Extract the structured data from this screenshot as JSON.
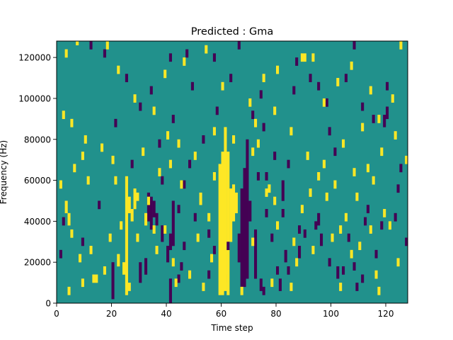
{
  "chart_data": {
    "type": "heatmap",
    "title": "Predicted : Gma",
    "xlabel": "Time step",
    "ylabel": "Frequency (Hz)",
    "xlim": [
      0,
      128
    ],
    "ylim": [
      0,
      128000
    ],
    "x_ticks": [
      0,
      20,
      40,
      60,
      80,
      100,
      120
    ],
    "x_tick_labels": [
      "0",
      "20",
      "40",
      "60",
      "80",
      "100",
      "120"
    ],
    "y_ticks": [
      0,
      20000,
      40000,
      60000,
      80000,
      100000,
      120000
    ],
    "y_tick_labels": [
      "0",
      "20000",
      "40000",
      "60000",
      "80000",
      "100000",
      "120000"
    ],
    "grid": false,
    "colormap": "viridis",
    "background_value": 0,
    "colors": {
      "background": "#21918c",
      "high": "#fde725",
      "low": "#440154"
    },
    "cell_height_hz": 2000,
    "cells_low": [
      [
        20,
        2000,
        20000
      ],
      [
        30,
        10000,
        20000
      ],
      [
        32,
        14000,
        22000
      ],
      [
        33,
        40000,
        54000
      ],
      [
        34,
        36000,
        52000
      ],
      [
        35,
        42000,
        50000
      ],
      [
        36,
        38000,
        44000
      ],
      [
        38,
        30000,
        38000
      ],
      [
        40,
        20000,
        28000
      ],
      [
        41,
        26000,
        34000
      ],
      [
        42,
        28000,
        50000
      ],
      [
        44,
        10000,
        14000
      ],
      [
        45,
        16000,
        20000
      ],
      [
        41,
        0,
        12000
      ],
      [
        46,
        56000,
        60000
      ],
      [
        55,
        12000,
        16000
      ],
      [
        57,
        24000,
        28000
      ],
      [
        61,
        10000,
        14000
      ],
      [
        66,
        20000,
        34000
      ],
      [
        67,
        8000,
        56000
      ],
      [
        68,
        8000,
        66000
      ],
      [
        69,
        12000,
        80000
      ],
      [
        70,
        40000,
        50000
      ],
      [
        72,
        12000,
        36000
      ],
      [
        73,
        60000,
        64000
      ],
      [
        74,
        6000,
        12000
      ],
      [
        75,
        4000,
        8000
      ],
      [
        76,
        42000,
        46000
      ],
      [
        78,
        30000,
        34000
      ],
      [
        80,
        14000,
        18000
      ],
      [
        81,
        6000,
        12000
      ],
      [
        82,
        50000,
        60000
      ],
      [
        83,
        20000,
        26000
      ],
      [
        84,
        14000,
        18000
      ],
      [
        88,
        22000,
        28000
      ],
      [
        90,
        32000,
        36000
      ],
      [
        94,
        36000,
        40000
      ],
      [
        95,
        38000,
        44000
      ],
      [
        96,
        28000,
        34000
      ],
      [
        102,
        12000,
        18000
      ],
      [
        106,
        30000,
        34000
      ],
      [
        108,
        16000,
        20000
      ],
      [
        111,
        10000,
        14000
      ],
      [
        113,
        44000,
        48000
      ],
      [
        118,
        36000,
        40000
      ],
      [
        119,
        86000,
        92000
      ],
      [
        120,
        90000,
        96000
      ],
      [
        124,
        54000,
        58000
      ],
      [
        127,
        28000,
        32000
      ]
    ],
    "cells_high": [
      [
        24,
        14000,
        20000
      ],
      [
        25,
        4000,
        62000
      ],
      [
        26,
        44000,
        52000
      ],
      [
        27,
        40000,
        46000
      ],
      [
        28,
        46000,
        56000
      ],
      [
        29,
        50000,
        54000
      ],
      [
        35,
        34000,
        38000
      ],
      [
        59,
        4000,
        68000
      ],
      [
        60,
        4000,
        74000
      ],
      [
        61,
        6000,
        86000
      ],
      [
        62,
        4000,
        74000
      ],
      [
        63,
        30000,
        56000
      ],
      [
        64,
        40000,
        58000
      ],
      [
        65,
        44000,
        54000
      ],
      [
        22,
        18000,
        24000
      ],
      [
        32,
        38000,
        44000
      ],
      [
        41,
        66000,
        70000
      ],
      [
        52,
        48000,
        54000
      ],
      [
        55,
        40000,
        44000
      ],
      [
        57,
        60000,
        64000
      ],
      [
        71,
        72000,
        76000
      ],
      [
        73,
        76000,
        80000
      ],
      [
        76,
        52000,
        56000
      ],
      [
        77,
        54000,
        58000
      ],
      [
        78,
        8000,
        12000
      ],
      [
        87,
        18000,
        22000
      ],
      [
        89,
        118000,
        122000
      ],
      [
        90,
        118000,
        122000
      ],
      [
        92,
        52000,
        56000
      ],
      [
        95,
        60000,
        64000
      ],
      [
        98,
        50000,
        54000
      ],
      [
        103,
        34000,
        38000
      ],
      [
        107,
        22000,
        26000
      ],
      [
        109,
        50000,
        54000
      ],
      [
        113,
        64000,
        68000
      ],
      [
        115,
        58000,
        62000
      ],
      [
        119,
        42000,
        46000
      ],
      [
        121,
        36000,
        40000
      ],
      [
        13,
        10000,
        14000
      ],
      [
        14,
        10000,
        14000
      ],
      [
        3,
        44000,
        50000
      ],
      [
        4,
        38000,
        44000
      ],
      [
        17,
        14000,
        18000
      ],
      [
        21,
        58000,
        62000
      ],
      [
        29,
        30000,
        34000
      ],
      [
        6,
        64000,
        68000
      ],
      [
        9,
        70000,
        74000
      ],
      [
        37,
        62000,
        66000
      ]
    ],
    "speckles_low": [
      [
        25,
        108000
      ],
      [
        41,
        118000
      ],
      [
        34,
        102000
      ],
      [
        47,
        120000
      ],
      [
        63,
        108000
      ],
      [
        71,
        90000
      ],
      [
        75,
        84000
      ],
      [
        79,
        70000
      ],
      [
        86,
        102000
      ],
      [
        95,
        104000
      ],
      [
        98,
        96000
      ],
      [
        105,
        108000
      ],
      [
        111,
        94000
      ],
      [
        115,
        88000
      ],
      [
        120,
        104000
      ],
      [
        17,
        120000
      ],
      [
        58,
        92000
      ],
      [
        53,
        78000
      ],
      [
        48,
        66000
      ],
      [
        38,
        58000
      ],
      [
        44,
        44000
      ],
      [
        50,
        40000
      ],
      [
        55,
        32000
      ],
      [
        62,
        26000
      ],
      [
        66,
        124000
      ],
      [
        76,
        60000
      ],
      [
        82,
        42000
      ],
      [
        88,
        34000
      ],
      [
        99,
        18000
      ],
      [
        104,
        14000
      ],
      [
        109,
        6000
      ],
      [
        123,
        40000
      ],
      [
        116,
        22000
      ],
      [
        99,
        82000
      ],
      [
        87,
        116000
      ],
      [
        108,
        124000
      ],
      [
        92,
        108000
      ],
      [
        30,
        94000
      ],
      [
        37,
        76000
      ],
      [
        42,
        88000
      ],
      [
        21,
        86000
      ],
      [
        12,
        124000
      ],
      [
        2,
        38000
      ],
      [
        9,
        28000
      ],
      [
        15,
        46000
      ],
      [
        27,
        66000
      ],
      [
        46,
        26000
      ],
      [
        57,
        118000
      ],
      [
        101,
        72000
      ],
      [
        112,
        38000
      ],
      [
        125,
        64000
      ],
      [
        1,
        22000
      ],
      [
        49,
        104000
      ],
      [
        74,
        100000
      ],
      [
        84,
        66000
      ]
    ],
    "speckles_high": [
      [
        3,
        120000
      ],
      [
        7,
        126000
      ],
      [
        18,
        124000
      ],
      [
        22,
        112000
      ],
      [
        28,
        98000
      ],
      [
        35,
        92000
      ],
      [
        39,
        110000
      ],
      [
        46,
        116000
      ],
      [
        54,
        122000
      ],
      [
        60,
        104000
      ],
      [
        70,
        96000
      ],
      [
        75,
        108000
      ],
      [
        80,
        112000
      ],
      [
        93,
        118000
      ],
      [
        97,
        96000
      ],
      [
        102,
        106000
      ],
      [
        107,
        114000
      ],
      [
        114,
        102000
      ],
      [
        117,
        88000
      ],
      [
        122,
        98000
      ],
      [
        125,
        124000
      ],
      [
        2,
        90000
      ],
      [
        5,
        86000
      ],
      [
        10,
        78000
      ],
      [
        16,
        74000
      ],
      [
        20,
        68000
      ],
      [
        31,
        72000
      ],
      [
        40,
        80000
      ],
      [
        44,
        76000
      ],
      [
        50,
        70000
      ],
      [
        57,
        82000
      ],
      [
        64,
        78000
      ],
      [
        72,
        86000
      ],
      [
        79,
        92000
      ],
      [
        85,
        82000
      ],
      [
        91,
        70000
      ],
      [
        97,
        66000
      ],
      [
        104,
        76000
      ],
      [
        111,
        84000
      ],
      [
        118,
        72000
      ],
      [
        123,
        80000
      ],
      [
        127,
        68000
      ],
      [
        1,
        56000
      ],
      [
        5,
        32000
      ],
      [
        8,
        20000
      ],
      [
        12,
        24000
      ],
      [
        19,
        30000
      ],
      [
        23,
        36000
      ],
      [
        36,
        24000
      ],
      [
        42,
        18000
      ],
      [
        48,
        12000
      ],
      [
        53,
        6000
      ],
      [
        56,
        20000
      ],
      [
        71,
        28000
      ],
      [
        80,
        36000
      ],
      [
        86,
        28000
      ],
      [
        93,
        24000
      ],
      [
        100,
        30000
      ],
      [
        105,
        40000
      ],
      [
        110,
        26000
      ],
      [
        116,
        12000
      ],
      [
        124,
        18000
      ],
      [
        4,
        4000
      ],
      [
        9,
        8000
      ],
      [
        26,
        6000
      ],
      [
        43,
        8000
      ],
      [
        67,
        4000
      ],
      [
        85,
        6000
      ],
      [
        103,
        6000
      ],
      [
        117,
        4000
      ],
      [
        11,
        58000
      ],
      [
        33,
        48000
      ],
      [
        39,
        34000
      ],
      [
        45,
        56000
      ],
      [
        51,
        30000
      ],
      [
        79,
        48000
      ],
      [
        89,
        44000
      ],
      [
        101,
        56000
      ],
      [
        108,
        62000
      ],
      [
        114,
        34000
      ]
    ]
  }
}
